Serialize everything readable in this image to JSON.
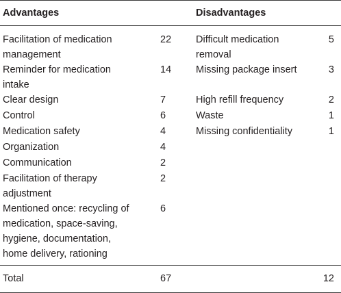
{
  "header": {
    "advantages": "Advantages",
    "disadvantages": "Disadvantages"
  },
  "advantages": [
    {
      "lines": [
        "Facilitation of medication",
        "management"
      ],
      "count": "22"
    },
    {
      "lines": [
        "Reminder for medication",
        "intake"
      ],
      "count": "14"
    },
    {
      "lines": [
        "Clear design"
      ],
      "count": "7"
    },
    {
      "lines": [
        "Control"
      ],
      "count": "6"
    },
    {
      "lines": [
        "Medication safety"
      ],
      "count": "4"
    },
    {
      "lines": [
        "Organization"
      ],
      "count": "4"
    },
    {
      "lines": [
        "Communication"
      ],
      "count": "2"
    },
    {
      "lines": [
        "Facilitation of therapy",
        "adjustment"
      ],
      "count": "2"
    },
    {
      "lines": [
        "Mentioned once: recycling of",
        "medication, space-saving,",
        "hygiene, documentation,",
        "home delivery, rationing"
      ],
      "count": "6"
    }
  ],
  "disadvantages": [
    {
      "lines": [
        "Difficult medication",
        "removal"
      ],
      "count": "5"
    },
    {
      "lines": [
        "Missing package insert"
      ],
      "count": "3"
    },
    {
      "lines": [
        "High refill frequency"
      ],
      "count": "2"
    },
    {
      "lines": [
        "Waste"
      ],
      "count": "1"
    },
    {
      "lines": [
        "Missing confidentiality"
      ],
      "count": "1"
    }
  ],
  "total": {
    "label": "Total",
    "advantages_total": "67",
    "disadvantages_total": "12"
  }
}
